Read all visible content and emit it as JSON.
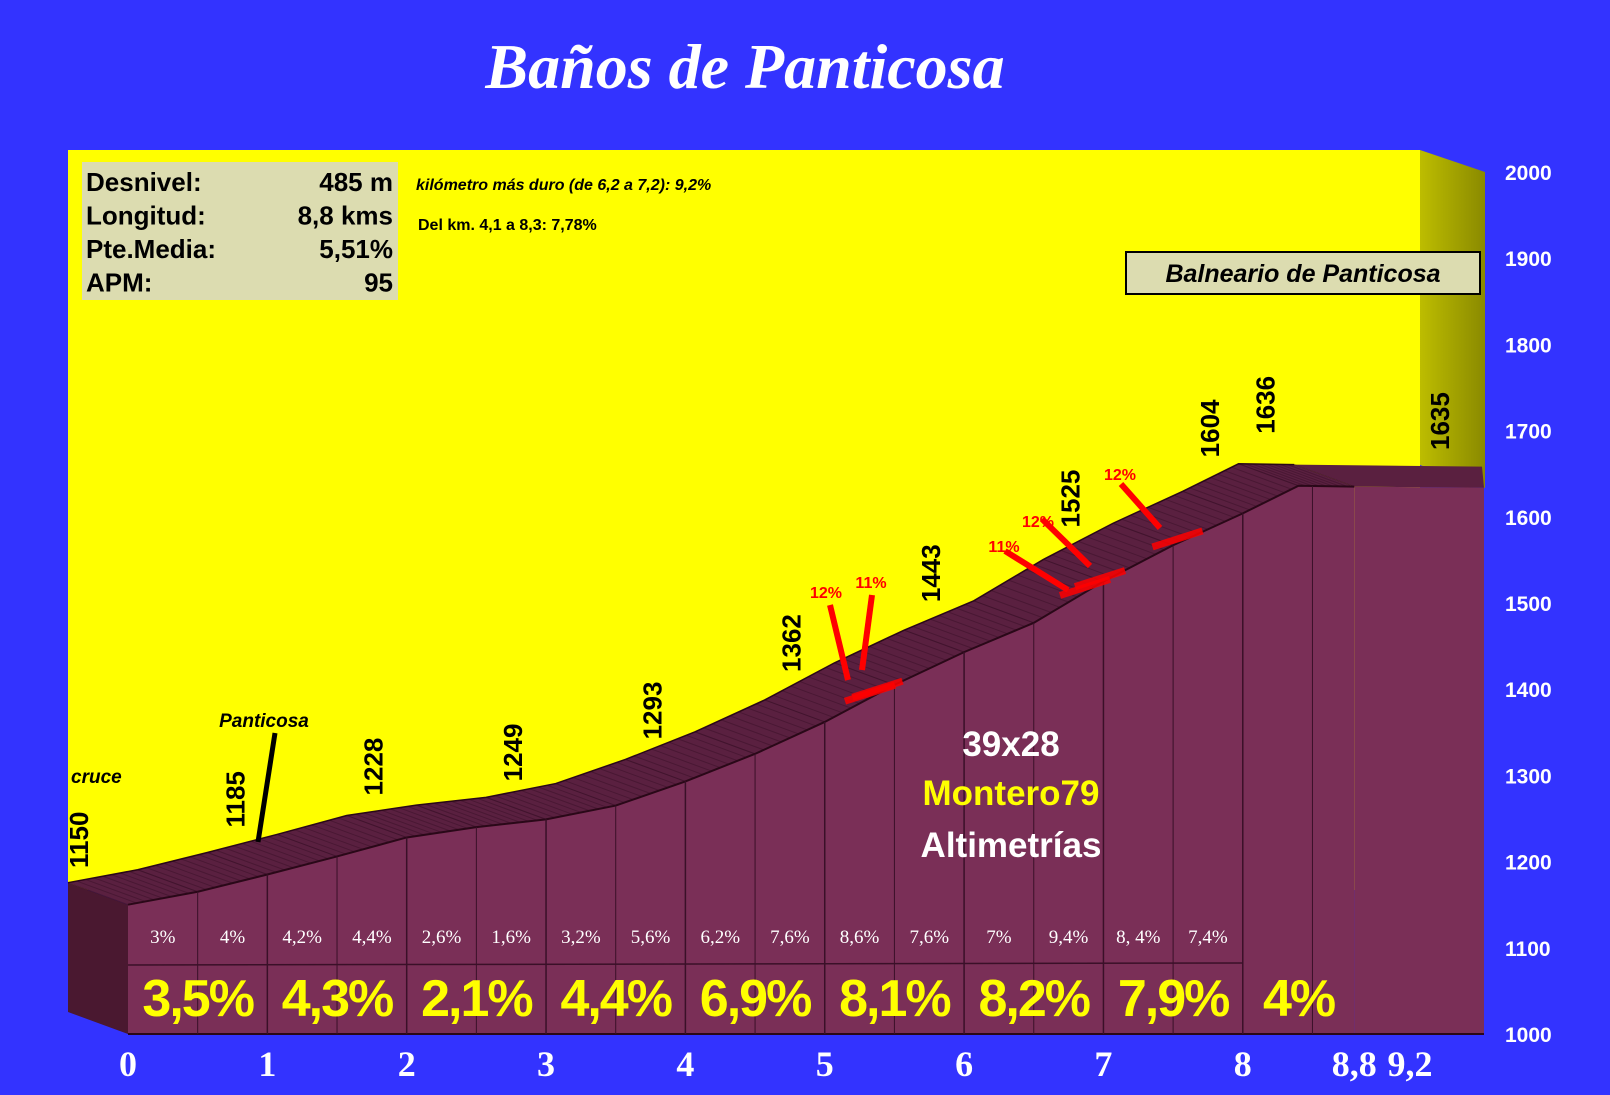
{
  "title": "Baños de Panticosa",
  "stats": [
    {
      "label": "Desnivel:",
      "value": "485 m"
    },
    {
      "label": "Longitud:",
      "value": "8,8 kms"
    },
    {
      "label": "Pte.Media:",
      "value": "5,51%"
    },
    {
      "label": "APM:",
      "value": "95"
    }
  ],
  "notes": {
    "hardest_km": "kilómetro más duro (de 6,2 a 7,2):  9,2%",
    "section": "Del km. 4,1 a 8,3:  7,78%"
  },
  "summit_label": "Balneario de Panticosa",
  "credits": {
    "gear": "39x28",
    "author": "Montero79",
    "site": "Altimetrías"
  },
  "colors": {
    "background": "#3333ff",
    "sky": "#ffff00",
    "profile_side": "#7a2f57",
    "profile_top": "#5a2040",
    "summit_wall": "#999900",
    "steep_marker": "#ff0000",
    "big_percent": "#ffff00"
  },
  "chart_data": {
    "type": "area",
    "xlim": [
      0,
      9.2
    ],
    "ylim": [
      1000,
      2000
    ],
    "x_ticks": [
      "0",
      "1",
      "2",
      "3",
      "4",
      "5",
      "6",
      "7",
      "8",
      "8,8",
      "9,2"
    ],
    "x_tick_values": [
      0,
      1,
      2,
      3,
      4,
      5,
      6,
      7,
      8,
      8.8,
      9.2
    ],
    "y_ticks": [
      2000,
      1900,
      1800,
      1700,
      1600,
      1500,
      1400,
      1300,
      1200,
      1100,
      1000
    ],
    "profile": {
      "x": [
        0,
        0.5,
        1,
        1.5,
        2,
        2.5,
        3,
        3.5,
        4,
        4.5,
        5,
        5.5,
        6,
        6.5,
        7,
        7.5,
        8,
        8.4,
        8.8
      ],
      "y": [
        1150,
        1165,
        1185,
        1206,
        1228,
        1240,
        1249,
        1265,
        1293,
        1325,
        1362,
        1405,
        1443,
        1477,
        1525,
        1567,
        1604,
        1636,
        1635
      ]
    },
    "altitude_labels": [
      {
        "x": 0,
        "value": "1150"
      },
      {
        "x": 1,
        "value": "1185"
      },
      {
        "x": 2,
        "value": "1228"
      },
      {
        "x": 3,
        "value": "1249"
      },
      {
        "x": 4,
        "value": "1293"
      },
      {
        "x": 5,
        "value": "1362"
      },
      {
        "x": 6,
        "value": "1443"
      },
      {
        "x": 7,
        "value": "1525"
      },
      {
        "x": 8,
        "value": "1604"
      },
      {
        "x": 8.4,
        "value": "1636"
      },
      {
        "x": 8.8,
        "value": "1635"
      }
    ],
    "half_km_gradients": [
      "3%",
      "4%",
      "4,2%",
      "4,4%",
      "2,6%",
      "1,6%",
      "3,2%",
      "5,6%",
      "6,2%",
      "7,6%",
      "8,6%",
      "7,6%",
      "7%",
      "9,4%",
      "8, 4%",
      "7,4%"
    ],
    "km_gradients": [
      "3,5%",
      "4,3%",
      "2,1%",
      "4,4%",
      "6,9%",
      "8,1%",
      "8,2%",
      "7,9%",
      "4%"
    ],
    "steep_ramps": [
      {
        "x": 4.95,
        "label": "12%"
      },
      {
        "x": 5.0,
        "label": "11%"
      },
      {
        "x": 6.25,
        "label": "11%"
      },
      {
        "x": 6.45,
        "label": "12%"
      },
      {
        "x": 7.3,
        "label": "12%"
      }
    ],
    "places": [
      {
        "x": 0,
        "label": "cruce"
      },
      {
        "x": 1,
        "label": "Panticosa"
      },
      {
        "x": 8.8,
        "label": "Balneario de Panticosa"
      }
    ]
  }
}
